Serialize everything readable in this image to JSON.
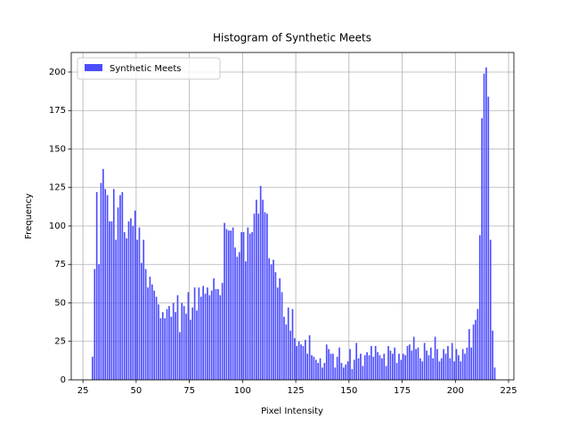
{
  "chart_data": {
    "type": "histogram",
    "title": "Histogram of Synthetic Meets",
    "x_label": "Pixel Intensity",
    "y_label": "Frequency",
    "bins": [
      29,
      30,
      31,
      32,
      33,
      34,
      35,
      36,
      37,
      38,
      39,
      40,
      41,
      42,
      43,
      44,
      45,
      46,
      47,
      48,
      49,
      50,
      51,
      52,
      53,
      54,
      55,
      56,
      57,
      58,
      59,
      60,
      61,
      62,
      63,
      64,
      65,
      66,
      67,
      68,
      69,
      70,
      71,
      72,
      73,
      74,
      75,
      76,
      77,
      78,
      79,
      80,
      81,
      82,
      83,
      84,
      85,
      86,
      87,
      88,
      89,
      90,
      91,
      92,
      93,
      94,
      95,
      96,
      97,
      98,
      99,
      100,
      101,
      102,
      103,
      104,
      105,
      106,
      107,
      108,
      109,
      110,
      111,
      112,
      113,
      114,
      115,
      116,
      117,
      118,
      119,
      120,
      121,
      122,
      123,
      124,
      125,
      126,
      127,
      128,
      129,
      130,
      131,
      132,
      133,
      134,
      135,
      136,
      137,
      138,
      139,
      140,
      141,
      142,
      143,
      144,
      145,
      146,
      147,
      148,
      149,
      150,
      151,
      152,
      153,
      154,
      155,
      156,
      157,
      158,
      159,
      160,
      161,
      162,
      163,
      164,
      165,
      166,
      167,
      168,
      169,
      170,
      171,
      172,
      173,
      174,
      175,
      176,
      177,
      178,
      179,
      180,
      181,
      182,
      183,
      184,
      185,
      186,
      187,
      188,
      189,
      190,
      191,
      192,
      193,
      194,
      195,
      196,
      197,
      198,
      199,
      200,
      201,
      202,
      203,
      204,
      205,
      206,
      207,
      208,
      209,
      210,
      211,
      212,
      213,
      214,
      215,
      216,
      217,
      218,
      219
    ],
    "series": [
      {
        "name": "Synthetic Meets",
        "color": "#4d4dff",
        "values": [
          15,
          72,
          122,
          75,
          128,
          137,
          124,
          120,
          103,
          103,
          124,
          91,
          112,
          120,
          122,
          96,
          92,
          103,
          105,
          100,
          110,
          91,
          99,
          76,
          91,
          72,
          60,
          67,
          62,
          58,
          54,
          49,
          40,
          44,
          40,
          46,
          48,
          41,
          50,
          44,
          55,
          31,
          50,
          48,
          43,
          57,
          39,
          47,
          60,
          45,
          60,
          54,
          61,
          56,
          60,
          55,
          58,
          66,
          59,
          59,
          55,
          63,
          102,
          98,
          97,
          97,
          99,
          86,
          80,
          83,
          96,
          96,
          77,
          99,
          95,
          96,
          108,
          117,
          108,
          126,
          117,
          109,
          108,
          79,
          75,
          78,
          70,
          60,
          66,
          57,
          41,
          36,
          47,
          32,
          46,
          27,
          22,
          25,
          23,
          22,
          26,
          17,
          29,
          16,
          15,
          13,
          11,
          14,
          8,
          11,
          23,
          20,
          17,
          17,
          8,
          15,
          21,
          11,
          8,
          10,
          12,
          20,
          7,
          13,
          24,
          14,
          17,
          9,
          16,
          18,
          16,
          22,
          15,
          22,
          18,
          16,
          14,
          17,
          9,
          22,
          19,
          17,
          21,
          11,
          17,
          13,
          17,
          16,
          22,
          23,
          19,
          28,
          20,
          21,
          14,
          12,
          24,
          19,
          16,
          21,
          14,
          28,
          20,
          12,
          14,
          20,
          17,
          22,
          14,
          24,
          12,
          20,
          16,
          12,
          20,
          17,
          21,
          33,
          21,
          36,
          39,
          46,
          94,
          170,
          199,
          203,
          184,
          91,
          32,
          8
        ]
      }
    ],
    "xlim": [
      19.5,
      227.5
    ],
    "ylim": [
      0,
      212.7
    ],
    "xticks": [
      25,
      50,
      75,
      100,
      125,
      150,
      175,
      200,
      225
    ],
    "yticks": [
      0,
      25,
      50,
      75,
      100,
      125,
      150,
      175,
      200
    ],
    "grid": true,
    "legend": "upper left"
  }
}
